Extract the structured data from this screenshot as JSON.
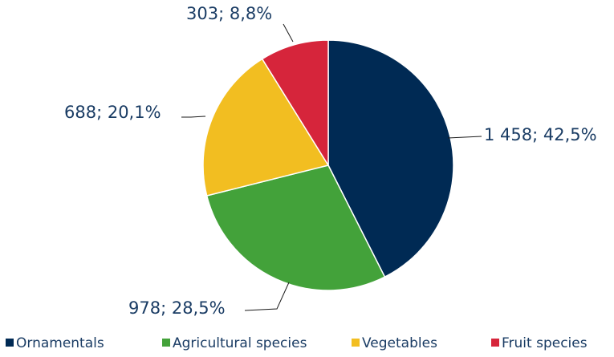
{
  "chart_data": {
    "type": "pie",
    "title": "",
    "legend_position": "bottom",
    "slices": [
      {
        "name": "Ornamentals",
        "value": 1458,
        "percent": 42.5,
        "label": "1 458; 42,5%",
        "color": "#002a54"
      },
      {
        "name": "Agricultural species",
        "value": 978,
        "percent": 28.5,
        "label": "978; 28,5%",
        "color": "#43a23a"
      },
      {
        "name": "Vegetables",
        "value": 688,
        "percent": 20.1,
        "label": "688; 20,1%",
        "color": "#f2be21"
      },
      {
        "name": "Fruit species",
        "value": 303,
        "percent": 8.8,
        "label": "303; 8,8%",
        "color": "#d6253b"
      }
    ]
  }
}
